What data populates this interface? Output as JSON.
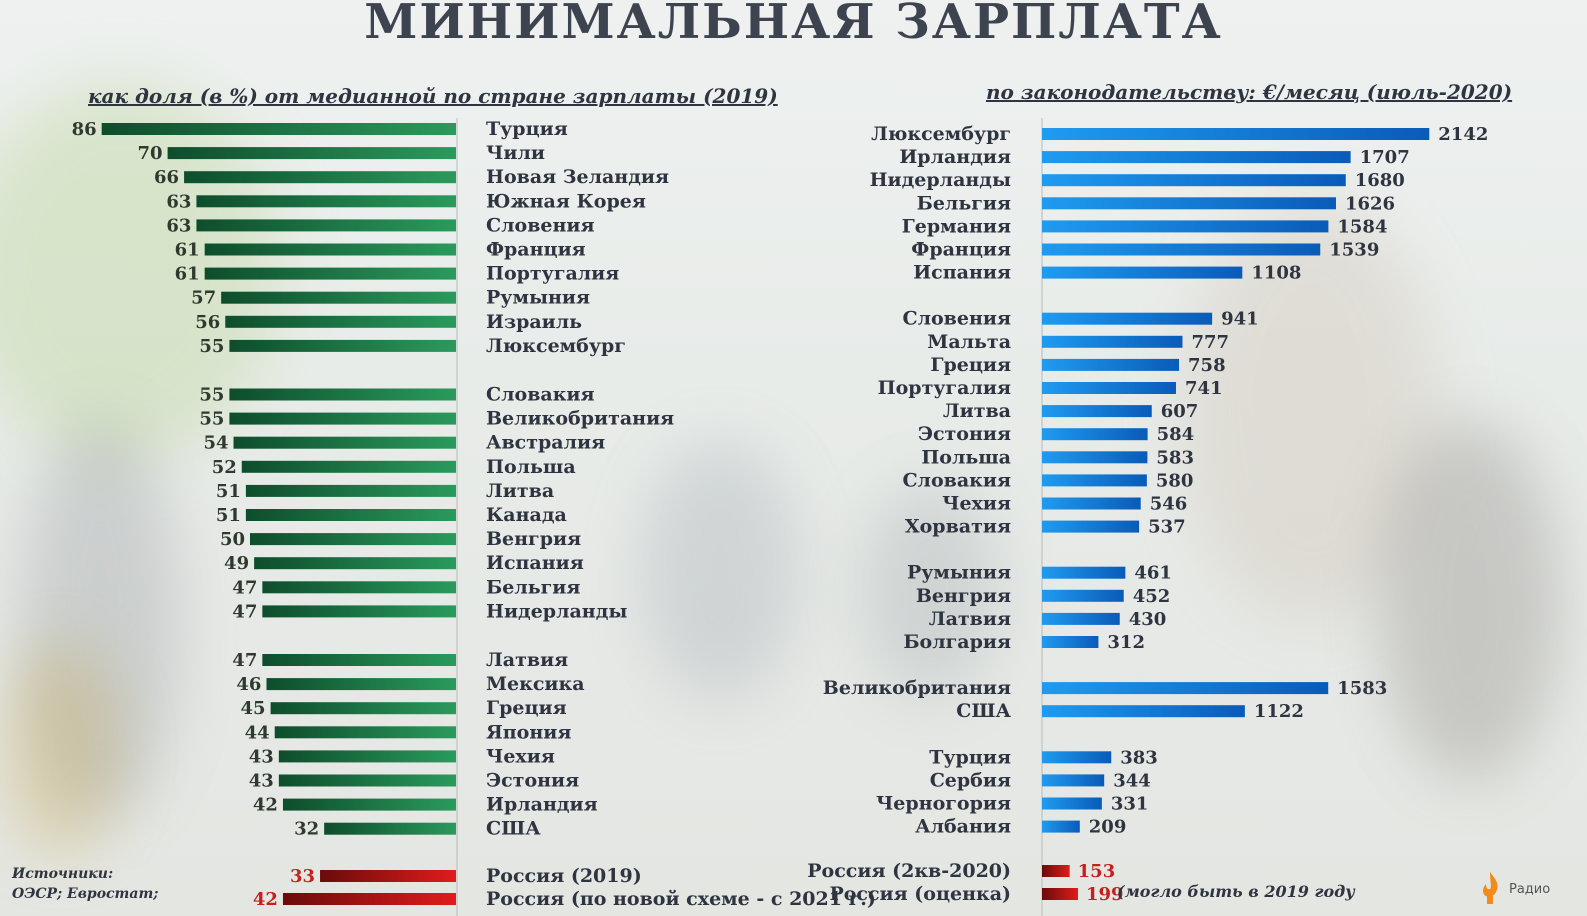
{
  "header": {
    "title": "МИНИМАЛЬНАЯ ЗАРПЛАТА"
  },
  "colors": {
    "green_dark": "#0e4d2c",
    "green_light": "#2a9a5c",
    "blue_dark": "#0a5bb8",
    "blue_light": "#1f9bf0",
    "red_dark": "#6a0b0b",
    "red_light": "#e01c1c"
  },
  "chart_data": [
    {
      "type": "bar",
      "orientation": "horizontal",
      "title": "как доля (в %) от медианной по стране зарплаты (2019)",
      "categories": [
        "Турция",
        "Чили",
        "Новая Зеландия",
        "Южная Корея",
        "Словения",
        "Франция",
        "Португалия",
        "Румыния",
        "Израиль",
        "Люксембург",
        "Словакия",
        "Великобритания",
        "Австралия",
        "Польша",
        "Литва",
        "Канада",
        "Венгрия",
        "Испания",
        "Бельгия",
        "Нидерланды",
        "Латвия",
        "Мексика",
        "Греция",
        "Япония",
        "Чехия",
        "Эстония",
        "Ирландия",
        "США"
      ],
      "values": [
        86,
        70,
        66,
        63,
        63,
        61,
        61,
        57,
        56,
        55,
        55,
        55,
        54,
        52,
        51,
        51,
        50,
        49,
        47,
        47,
        47,
        46,
        45,
        44,
        43,
        43,
        42,
        32
      ],
      "highlight": [
        {
          "label": "Россия (2019)",
          "value": 33
        },
        {
          "label": "Россия (по новой схеме - с 2021 г.)",
          "value": 42
        }
      ]
    },
    {
      "type": "bar",
      "orientation": "horizontal",
      "title": "по законодательству: €/месяц (июль-2020)",
      "categories": [
        "Люксембург",
        "Ирландия",
        "Нидерланды",
        "Бельгия",
        "Германия",
        "Франция",
        "Испания",
        "Словения",
        "Мальта",
        "Греция",
        "Португалия",
        "Литва",
        "Эстония",
        "Польша",
        "Словакия",
        "Чехия",
        "Хорватия",
        "Румыния",
        "Венгрия",
        "Латвия",
        "Болгария",
        "Великобритания",
        "США",
        "Турция",
        "Сербия",
        "Черногория",
        "Албания"
      ],
      "values": [
        2142,
        1707,
        1680,
        1626,
        1584,
        1539,
        1108,
        941,
        777,
        758,
        741,
        607,
        584,
        583,
        580,
        546,
        537,
        461,
        452,
        430,
        312,
        1583,
        1122,
        383,
        344,
        331,
        209
      ],
      "highlight": [
        {
          "label": "Россия (2кв-2020)",
          "value": 153
        },
        {
          "label": "Россия (оценка)",
          "value": 199
        }
      ],
      "note": "(могло быть в 2019 году"
    }
  ],
  "footer": {
    "sources_label": "Источники:",
    "sources_text": "ОЭСР; Евростат;",
    "logo_text": "Радио"
  }
}
